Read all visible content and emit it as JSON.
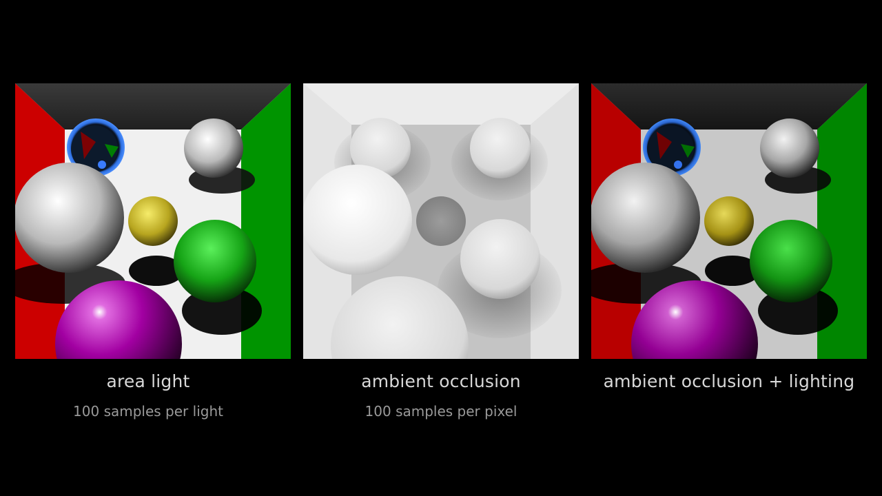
{
  "panels": [
    {
      "title": "area light",
      "subtitle": "100 samples per light"
    },
    {
      "title": "ambient occlusion",
      "subtitle": "100 samples per pixel"
    },
    {
      "title": "ambient occlusion + lighting",
      "subtitle": ""
    }
  ],
  "colors": {
    "background": "#000000",
    "left_wall": "#d40000",
    "right_wall": "#009a00",
    "purple_sphere": "#b100b1",
    "yellow_sphere": "#e3d43a",
    "green_sphere": "#1fc21f",
    "blue_ring": "#3f86ff"
  }
}
